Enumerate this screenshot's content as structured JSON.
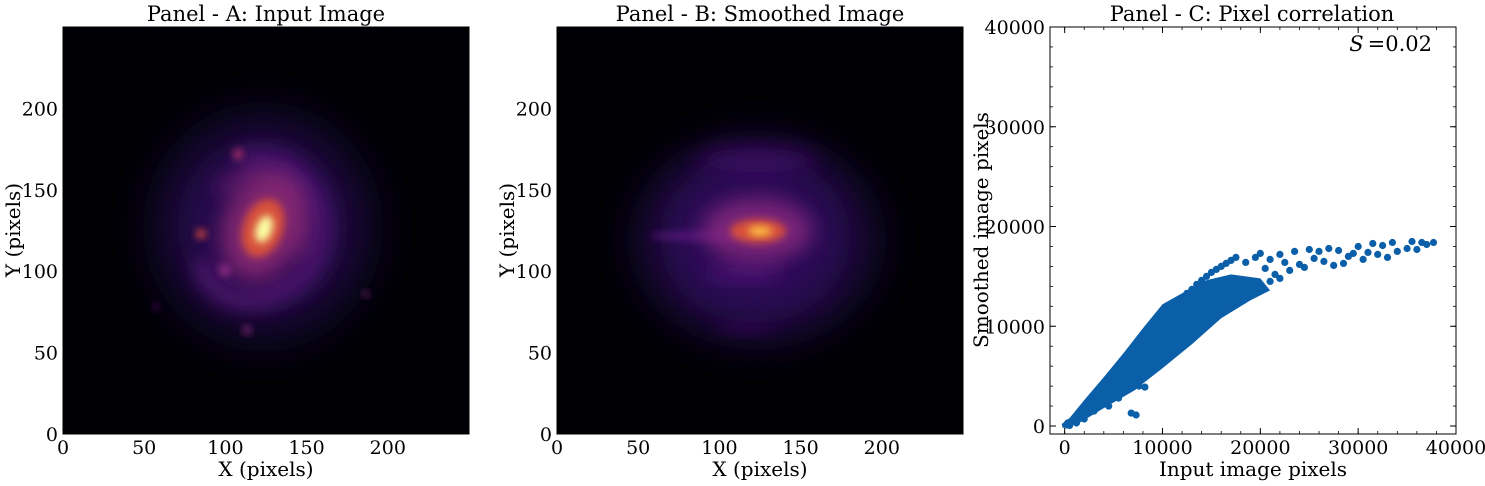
{
  "figure": {
    "panels": [
      {
        "title": "Panel - A: Input Image",
        "xlabel": "X (pixels)",
        "ylabel": "Y (pixels)",
        "xticks": [
          "0",
          "50",
          "100",
          "150",
          "200"
        ],
        "yticks": [
          "0",
          "50",
          "100",
          "150",
          "200"
        ],
        "colormap": "inferno"
      },
      {
        "title": "Panel - B: Smoothed Image",
        "xlabel": "X (pixels)",
        "ylabel": "Y (pixels)",
        "xticks": [
          "0",
          "50",
          "100",
          "150",
          "200"
        ],
        "yticks": [
          "0",
          "50",
          "100",
          "150",
          "200"
        ],
        "colormap": "inferno"
      },
      {
        "title": "Panel - C: Pixel correlation",
        "xlabel": "Input image pixels",
        "ylabel": "Smoothed image pixels",
        "xticks": [
          "0",
          "10000",
          "20000",
          "30000",
          "40000"
        ],
        "yticks": [
          "0",
          "10000",
          "20000",
          "30000",
          "40000"
        ],
        "annotation_symbol": "S",
        "annotation_value": "=0.02"
      }
    ]
  },
  "chart_data": [
    {
      "type": "heatmap",
      "title": "Panel - A: Input Image",
      "xlabel": "X (pixels)",
      "ylabel": "Y (pixels)",
      "xlim": [
        0,
        250
      ],
      "ylim": [
        0,
        250
      ],
      "colormap": "inferno",
      "peak_center": [
        123,
        123
      ],
      "features": [
        {
          "x": 123,
          "y": 123,
          "intensity": 1.0
        },
        {
          "x": 110,
          "y": 173,
          "intensity": 0.45
        },
        {
          "x": 87,
          "y": 124,
          "intensity": 0.4
        },
        {
          "x": 112,
          "y": 102,
          "intensity": 0.35
        },
        {
          "x": 115,
          "y": 62,
          "intensity": 0.3
        },
        {
          "x": 185,
          "y": 87,
          "intensity": 0.25
        }
      ]
    },
    {
      "type": "heatmap",
      "title": "Panel - B: Smoothed Image",
      "xlabel": "X (pixels)",
      "ylabel": "Y (pixels)",
      "xlim": [
        0,
        250
      ],
      "ylim": [
        0,
        250
      ],
      "colormap": "inferno",
      "peak_center": [
        124,
        124
      ]
    },
    {
      "type": "scatter",
      "title": "Panel - C: Pixel correlation",
      "xlabel": "Input image pixels",
      "ylabel": "Smoothed image pixels",
      "xlim": [
        -1500,
        40000
      ],
      "ylim": [
        -800,
        40000
      ],
      "color": "#0b5fa8",
      "annotation": "S =0.02",
      "points": [
        [
          200,
          100
        ],
        [
          600,
          400
        ],
        [
          1000,
          700
        ],
        [
          1500,
          1100
        ],
        [
          2000,
          1500
        ],
        [
          2500,
          1900
        ],
        [
          3000,
          2400
        ],
        [
          3500,
          2900
        ],
        [
          4000,
          3300
        ],
        [
          4500,
          3800
        ],
        [
          5000,
          4300
        ],
        [
          5500,
          4900
        ],
        [
          6000,
          5400
        ],
        [
          6500,
          6000
        ],
        [
          7000,
          6600
        ],
        [
          7500,
          7200
        ],
        [
          8000,
          7900
        ],
        [
          8500,
          8500
        ],
        [
          9000,
          9100
        ],
        [
          9500,
          9800
        ],
        [
          10000,
          10500
        ],
        [
          10500,
          11100
        ],
        [
          11000,
          11700
        ],
        [
          11500,
          12300
        ],
        [
          12000,
          12800
        ],
        [
          12500,
          13300
        ],
        [
          13000,
          13700
        ],
        [
          13500,
          14200
        ],
        [
          14000,
          14600
        ],
        [
          14500,
          15000
        ],
        [
          15000,
          15400
        ],
        [
          15500,
          15700
        ],
        [
          16000,
          16000
        ],
        [
          16500,
          16300
        ],
        [
          17000,
          16600
        ],
        [
          17500,
          16900
        ],
        [
          3000,
          1500
        ],
        [
          4000,
          2300
        ],
        [
          5000,
          3100
        ],
        [
          6000,
          4000
        ],
        [
          7000,
          4800
        ],
        [
          8000,
          5700
        ],
        [
          9000,
          6500
        ],
        [
          10000,
          7300
        ],
        [
          11000,
          8200
        ],
        [
          12000,
          9000
        ],
        [
          13000,
          9800
        ],
        [
          14000,
          10600
        ],
        [
          15000,
          11400
        ],
        [
          16000,
          12100
        ],
        [
          17000,
          12800
        ],
        [
          18000,
          13300
        ],
        [
          19000,
          13800
        ],
        [
          20000,
          14200
        ],
        [
          21000,
          14500
        ],
        [
          22000,
          14800
        ],
        [
          18500,
          16400
        ],
        [
          19500,
          16900
        ],
        [
          20000,
          17300
        ],
        [
          20500,
          15800
        ],
        [
          21000,
          16700
        ],
        [
          21500,
          15200
        ],
        [
          22000,
          17200
        ],
        [
          22500,
          16400
        ],
        [
          23000,
          15600
        ],
        [
          23500,
          17500
        ],
        [
          24000,
          16200
        ],
        [
          24500,
          15900
        ],
        [
          25000,
          17700
        ],
        [
          25500,
          16800
        ],
        [
          26000,
          17500
        ],
        [
          26500,
          16500
        ],
        [
          27000,
          17800
        ],
        [
          27500,
          16100
        ],
        [
          28000,
          17600
        ],
        [
          28500,
          16300
        ],
        [
          29000,
          17000
        ],
        [
          29500,
          17300
        ],
        [
          30000,
          18000
        ],
        [
          30500,
          16700
        ],
        [
          31000,
          17400
        ],
        [
          31500,
          18300
        ],
        [
          32000,
          17200
        ],
        [
          32500,
          18100
        ],
        [
          33000,
          16900
        ],
        [
          33500,
          18400
        ],
        [
          34000,
          17500
        ],
        [
          35000,
          17800
        ],
        [
          35500,
          18500
        ],
        [
          36000,
          17700
        ],
        [
          36500,
          18400
        ],
        [
          37000,
          18200
        ],
        [
          37700,
          18400
        ],
        [
          7000,
          3900
        ],
        [
          7600,
          4000
        ],
        [
          8200,
          3900
        ],
        [
          6200,
          3800
        ],
        [
          6800,
          1300
        ],
        [
          7300,
          1100
        ],
        [
          4500,
          2000
        ],
        [
          5500,
          2800
        ],
        [
          2000,
          700
        ],
        [
          1200,
          300
        ],
        [
          500,
          50
        ],
        [
          300,
          300
        ]
      ]
    }
  ]
}
